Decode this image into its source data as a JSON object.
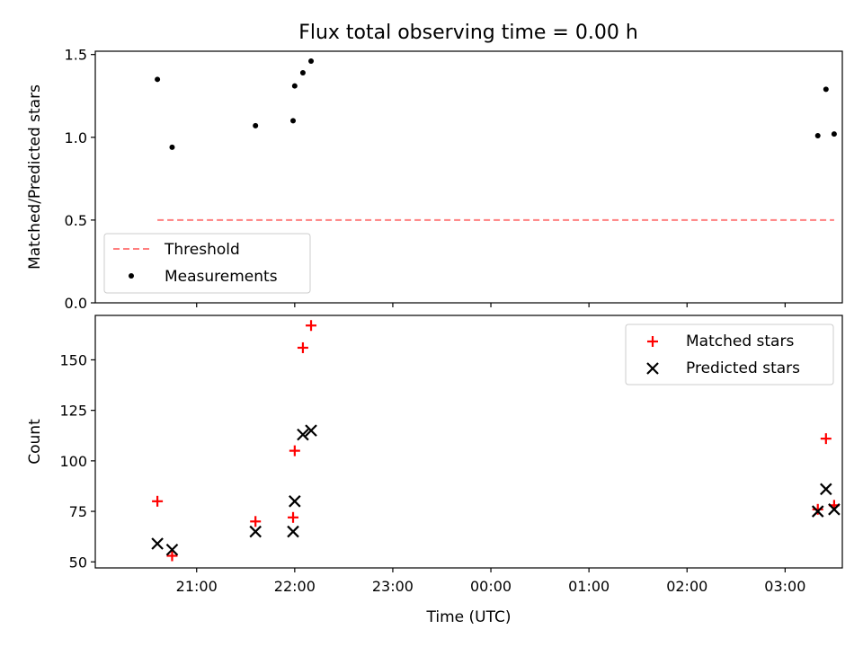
{
  "title": "Flux total observing time = 0.00 h",
  "colors": {
    "matched": "#ff0000",
    "predicted": "#000000",
    "threshold": "#ff7f7f",
    "measurements": "#000000"
  },
  "chart_data": [
    {
      "type": "scatter",
      "panel": "top",
      "ylabel": "Matched/Predicted stars",
      "xlabel": "",
      "ylim": [
        0,
        1.52
      ],
      "yticks": [
        "0.0",
        "0.5",
        "1.0",
        "1.5"
      ],
      "legend_position": "lower-left",
      "grid": false,
      "series": [
        {
          "name": "Threshold",
          "kind": "dashed-line",
          "x": [
            "20:36",
            "03:30"
          ],
          "y": [
            0.5,
            0.5
          ]
        },
        {
          "name": "Measurements",
          "kind": "dot",
          "x": [
            "20:36",
            "20:45",
            "21:36",
            "21:59",
            "22:00",
            "22:05",
            "22:10",
            "03:20",
            "03:25",
            "03:30"
          ],
          "y": [
            1.35,
            0.94,
            1.07,
            1.1,
            1.31,
            1.39,
            1.46,
            1.01,
            1.29,
            1.02
          ]
        }
      ]
    },
    {
      "type": "scatter",
      "panel": "bottom",
      "ylabel": "Count",
      "xlabel": "Time (UTC)",
      "ylim": [
        47,
        172
      ],
      "yticks": [
        "50",
        "75",
        "100",
        "125",
        "150"
      ],
      "xticks": [
        "21:00",
        "22:00",
        "23:00",
        "00:00",
        "01:00",
        "02:00",
        "03:00"
      ],
      "legend_position": "upper-right",
      "grid": false,
      "series": [
        {
          "name": "Matched stars",
          "marker": "plus",
          "x": [
            "20:36",
            "20:45",
            "21:36",
            "21:59",
            "22:00",
            "22:05",
            "22:10",
            "03:20",
            "03:25",
            "03:30"
          ],
          "y": [
            80,
            53,
            70,
            72,
            105,
            156,
            167,
            76,
            111,
            78
          ]
        },
        {
          "name": "Predicted stars",
          "marker": "x",
          "x": [
            "20:36",
            "20:45",
            "21:36",
            "21:59",
            "22:00",
            "22:05",
            "22:10",
            "03:20",
            "03:25",
            "03:30"
          ],
          "y": [
            59,
            56,
            65,
            65,
            80,
            113,
            115,
            75,
            86,
            76
          ]
        }
      ]
    }
  ]
}
